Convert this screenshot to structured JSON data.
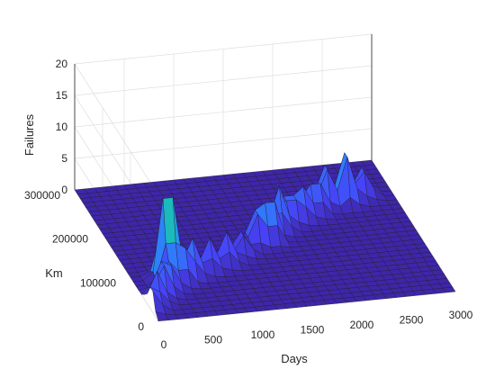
{
  "chart_data": {
    "type": "surface",
    "title": "",
    "xlabel": "Days",
    "ylabel": "Km",
    "zlabel": "Failures",
    "xlim": [
      0,
      3000
    ],
    "ylim": [
      0,
      300000
    ],
    "zlim": [
      0,
      20
    ],
    "x_ticks": [
      "0",
      "500",
      "1000",
      "1500",
      "2000",
      "2500",
      "3000"
    ],
    "y_ticks": [
      "0",
      "100000",
      "200000",
      "300000"
    ],
    "z_ticks": [
      "0",
      "5",
      "10",
      "15",
      "20"
    ],
    "grid": true,
    "colormap": [
      "#3e26a8",
      "#4743f8",
      "#2f7efb",
      "#1fa4e4",
      "#1bbfb2",
      "#3fcd7d",
      "#a8c43d",
      "#f5c22a",
      "#f9fb15"
    ],
    "surface_peaks": [
      {
        "days": 0,
        "km": 25000,
        "failures": 4
      },
      {
        "days": 100,
        "km": 40000,
        "failures": 5
      },
      {
        "days": 200,
        "km": 55000,
        "failures": 6
      },
      {
        "days": 300,
        "km": 65000,
        "failures": 5
      },
      {
        "days": 350,
        "km": 90000,
        "failures": 17
      },
      {
        "days": 450,
        "km": 80000,
        "failures": 7
      },
      {
        "days": 600,
        "km": 90000,
        "failures": 6
      },
      {
        "days": 800,
        "km": 100000,
        "failures": 5
      },
      {
        "days": 1000,
        "km": 110000,
        "failures": 5
      },
      {
        "days": 1200,
        "km": 125000,
        "failures": 4
      },
      {
        "days": 1400,
        "km": 145000,
        "failures": 6
      },
      {
        "days": 1550,
        "km": 150000,
        "failures": 8
      },
      {
        "days": 1700,
        "km": 170000,
        "failures": 7
      },
      {
        "days": 1850,
        "km": 185000,
        "failures": 6
      },
      {
        "days": 2000,
        "km": 190000,
        "failures": 5
      },
      {
        "days": 2150,
        "km": 200000,
        "failures": 6
      },
      {
        "days": 2300,
        "km": 215000,
        "failures": 7
      },
      {
        "days": 2500,
        "km": 215000,
        "failures": 9
      },
      {
        "days": 2700,
        "km": 225000,
        "failures": 5
      }
    ]
  }
}
